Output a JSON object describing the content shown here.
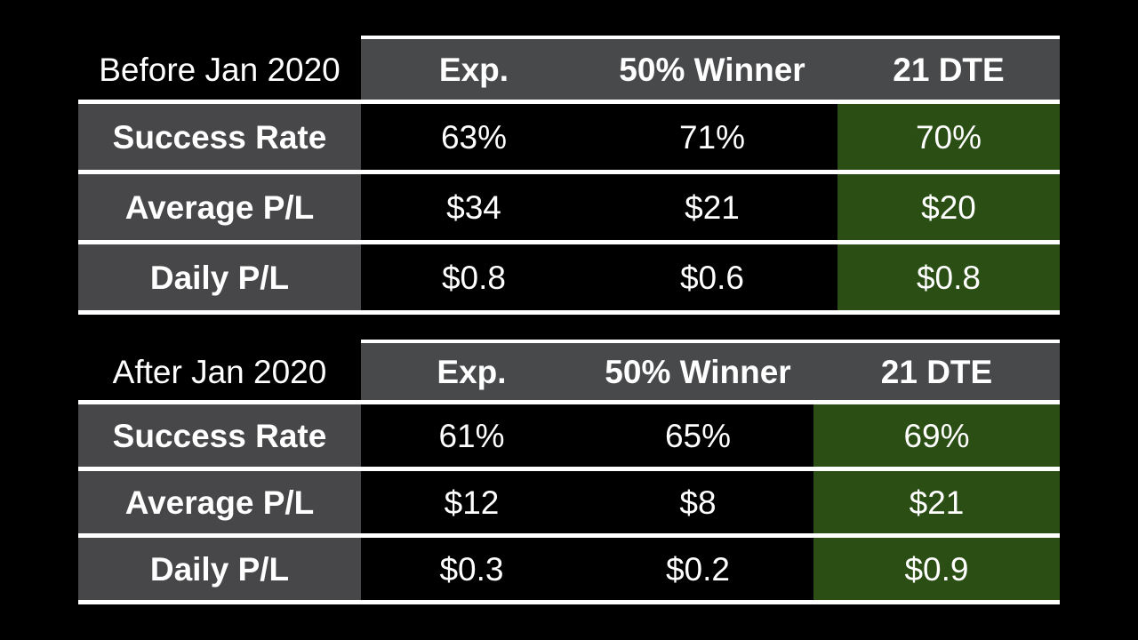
{
  "colors": {
    "page_bg": "#000000",
    "header_bg": "#48494b",
    "label_bg": "#474749",
    "cell_bg": "#000000",
    "highlight_bg": "#2b4e15",
    "divider": "#ffffff",
    "text": "#ffffff"
  },
  "chart_data": [
    {
      "type": "table",
      "title": "Before Jan 2020",
      "columns": [
        "Exp.",
        "50% Winner",
        "21 DTE"
      ],
      "highlight_column": "21 DTE",
      "rows": [
        {
          "label": "Success Rate",
          "values": [
            "63%",
            "71%",
            "70%"
          ]
        },
        {
          "label": "Average P/L",
          "values": [
            "$34",
            "$21",
            "$20"
          ]
        },
        {
          "label": "Daily P/L",
          "values": [
            "$0.8",
            "$0.6",
            "$0.8"
          ]
        }
      ]
    },
    {
      "type": "table",
      "title": "After Jan 2020",
      "columns": [
        "Exp.",
        "50% Winner",
        "21 DTE"
      ],
      "highlight_column": "21 DTE",
      "rows": [
        {
          "label": "Success Rate",
          "values": [
            "61%",
            "65%",
            "69%"
          ]
        },
        {
          "label": "Average P/L",
          "values": [
            "$12",
            "$8",
            "$21"
          ]
        },
        {
          "label": "Daily P/L",
          "values": [
            "$0.3",
            "$0.2",
            "$0.9"
          ]
        }
      ]
    }
  ]
}
